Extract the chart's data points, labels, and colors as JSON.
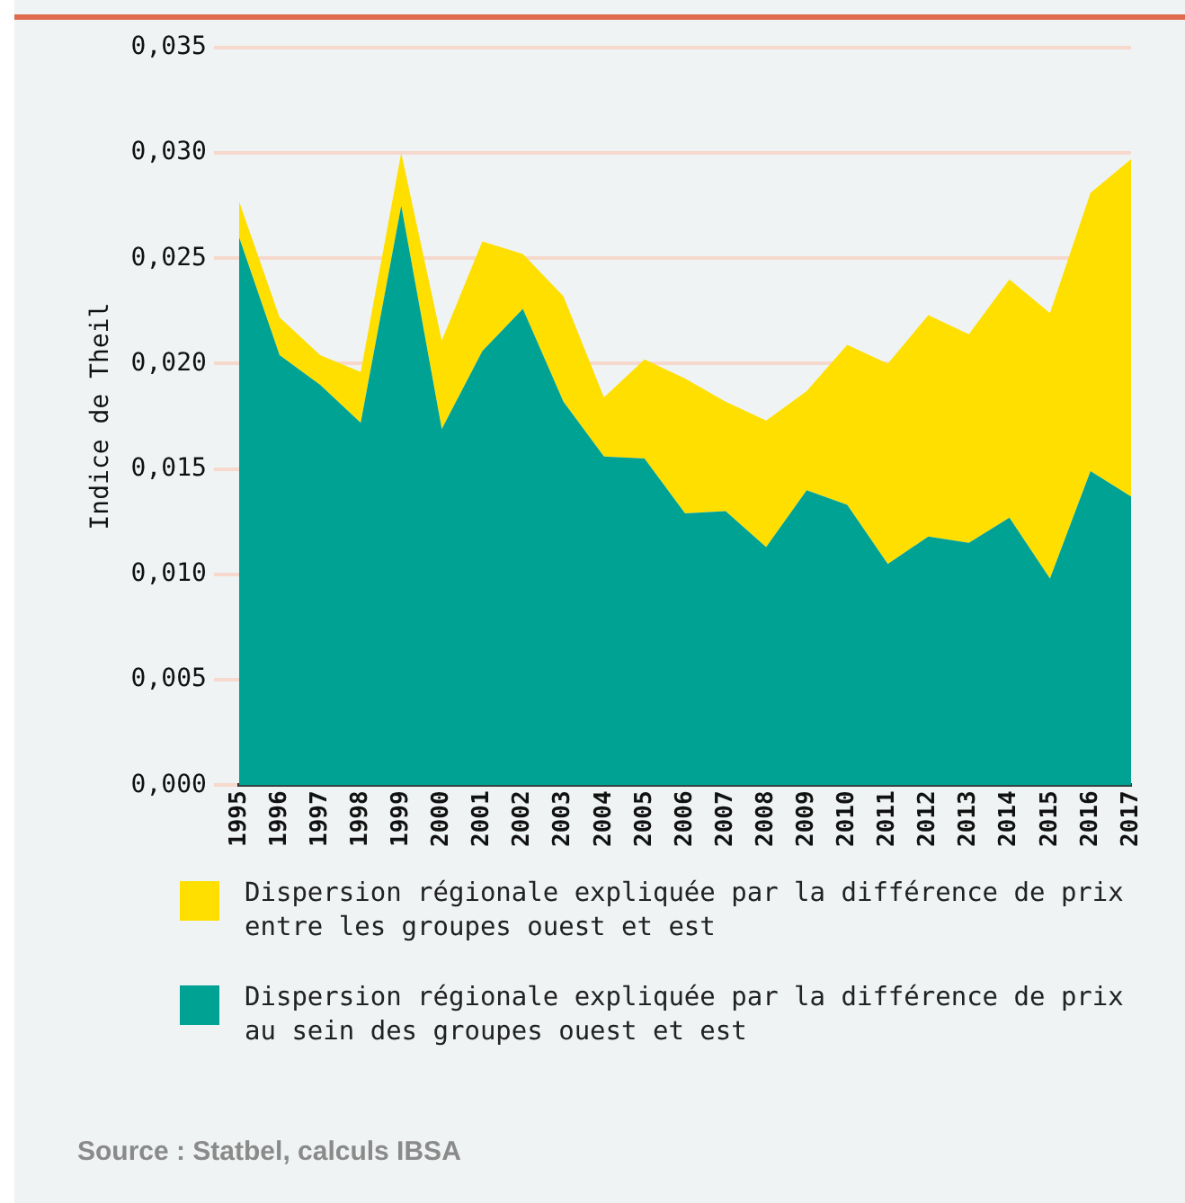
{
  "chart_data": {
    "type": "area",
    "stacked": true,
    "ylabel": "Indice de Theil",
    "categories": [
      "1995",
      "1996",
      "1997",
      "1998",
      "1999",
      "2000",
      "2001",
      "2002",
      "2003",
      "2004",
      "2005",
      "2006",
      "2007",
      "2008",
      "2009",
      "2010",
      "2011",
      "2012",
      "2013",
      "2014",
      "2015",
      "2016",
      "2017"
    ],
    "series": [
      {
        "name": "Dispersion régionale expliquée par la différence de prix au sein des groupes ouest et est",
        "color": "#00a294",
        "values": [
          0.026,
          0.0204,
          0.019,
          0.0172,
          0.0275,
          0.0169,
          0.0206,
          0.0226,
          0.0182,
          0.0156,
          0.0155,
          0.0129,
          0.013,
          0.0113,
          0.014,
          0.0133,
          0.0105,
          0.0118,
          0.0115,
          0.0127,
          0.0098,
          0.0149,
          0.0137
        ]
      },
      {
        "name": "Dispersion régionale expliquée par la différence de prix entre les groupes ouest et est",
        "color": "#ffdf00",
        "values": [
          0.0017,
          0.0018,
          0.0014,
          0.0024,
          0.0025,
          0.0042,
          0.0052,
          0.0026,
          0.005,
          0.0028,
          0.0047,
          0.0064,
          0.0052,
          0.006,
          0.0047,
          0.0076,
          0.0095,
          0.0105,
          0.0099,
          0.0113,
          0.0126,
          0.0132,
          0.016
        ]
      }
    ],
    "ylim": [
      0,
      0.035
    ],
    "yticks": [
      {
        "value": 0,
        "label": "0,000"
      },
      {
        "value": 0.005,
        "label": "0,005"
      },
      {
        "value": 0.01,
        "label": "0,010"
      },
      {
        "value": 0.015,
        "label": "0,015"
      },
      {
        "value": 0.02,
        "label": "0,020"
      },
      {
        "value": 0.025,
        "label": "0,025"
      },
      {
        "value": 0.03,
        "label": "0,030"
      },
      {
        "value": 0.035,
        "label": "0,035"
      }
    ],
    "grid": "y",
    "legend": "bottom",
    "annotations": [
      "Source : Statbel, calculs IBSA"
    ]
  }
}
